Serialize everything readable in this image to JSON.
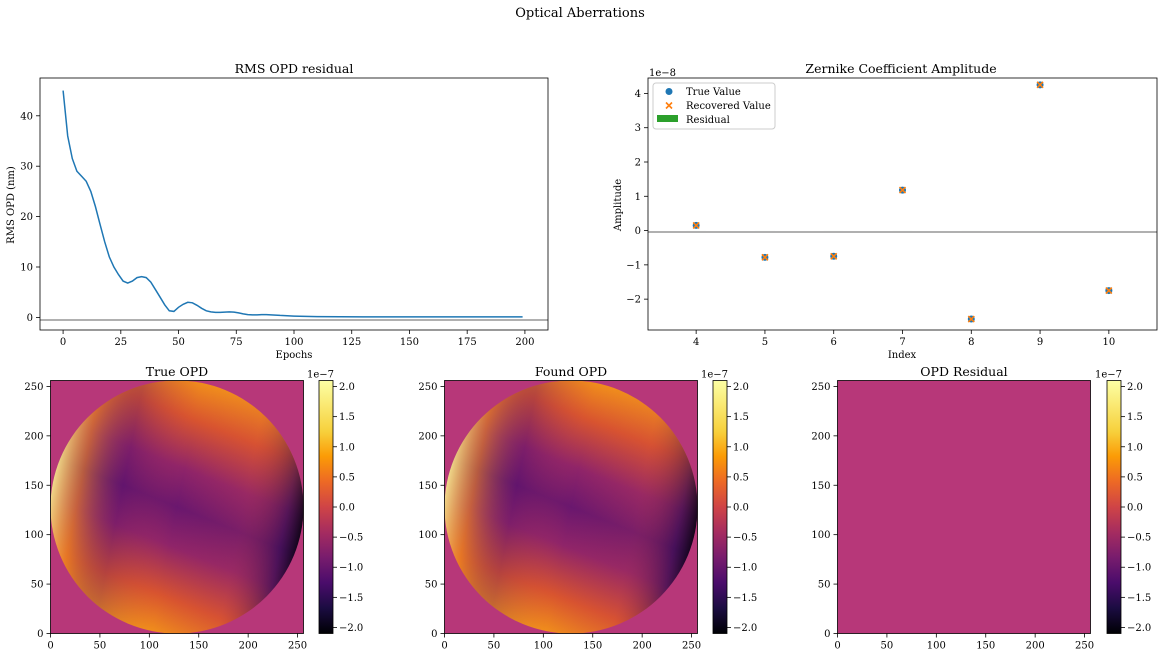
{
  "figure_title": "Optical Aberrations",
  "colors": {
    "line": "#1f77b4",
    "true_marker": "#1f77b4",
    "recovered_marker": "#ff7f0e",
    "residual_bar": "#2ca02c",
    "zero_line": "#808080",
    "opd_background": "#b73779"
  },
  "colormap": "inferno",
  "chart_data": [
    {
      "type": "line",
      "title": "RMS OPD residual",
      "xlabel": "Epochs",
      "ylabel": "RMS OPD (nm)",
      "xlim": [
        -10,
        210
      ],
      "ylim": [
        -2.5,
        47.5
      ],
      "xticks": [
        0,
        25,
        50,
        75,
        100,
        125,
        150,
        175,
        200
      ],
      "yticks": [
        0,
        10,
        20,
        30,
        40
      ],
      "hline": 0,
      "x": [
        0,
        2,
        4,
        6,
        8,
        10,
        12,
        14,
        16,
        18,
        20,
        22,
        24,
        26,
        28,
        30,
        32,
        34,
        36,
        38,
        40,
        42,
        44,
        46,
        48,
        50,
        52,
        54,
        56,
        58,
        60,
        62,
        64,
        66,
        68,
        70,
        72,
        74,
        76,
        78,
        80,
        82,
        84,
        86,
        88,
        90,
        92,
        94,
        96,
        98,
        100,
        110,
        120,
        130,
        140,
        150,
        160,
        170,
        180,
        190,
        199
      ],
      "y": [
        45.0,
        36.0,
        31.5,
        29.0,
        28.0,
        27.0,
        25.0,
        22.0,
        18.5,
        15.0,
        12.0,
        10.0,
        8.5,
        7.2,
        6.8,
        7.2,
        7.9,
        8.1,
        7.9,
        7.0,
        5.5,
        4.0,
        2.5,
        1.3,
        1.2,
        2.0,
        2.6,
        3.0,
        2.9,
        2.4,
        1.8,
        1.3,
        1.1,
        1.0,
        1.0,
        1.05,
        1.1,
        1.05,
        0.9,
        0.7,
        0.55,
        0.5,
        0.5,
        0.55,
        0.55,
        0.5,
        0.45,
        0.4,
        0.35,
        0.3,
        0.25,
        0.15,
        0.12,
        0.1,
        0.1,
        0.1,
        0.1,
        0.1,
        0.1,
        0.1,
        0.1
      ]
    },
    {
      "type": "scatter",
      "title": "Zernike Coefficient Amplitude",
      "xlabel": "Index",
      "ylabel": "Amplitude",
      "offset_label": "1e−8",
      "xlim": [
        3.3,
        10.7
      ],
      "ylim": [
        -2.9,
        4.45
      ],
      "xticks": [
        4,
        5,
        6,
        7,
        8,
        9,
        10
      ],
      "yticks": [
        -2,
        -1,
        0,
        1,
        2,
        3,
        4
      ],
      "hline": 0,
      "legend_loc": "upper-left",
      "series": [
        {
          "name": "True Value",
          "marker": "circle",
          "x": [
            4,
            5,
            6,
            7,
            8,
            9,
            10
          ],
          "values": [
            0.15,
            -0.78,
            -0.75,
            1.18,
            -2.58,
            4.25,
            -1.75
          ]
        },
        {
          "name": "Recovered Value",
          "marker": "x",
          "x": [
            4,
            5,
            6,
            7,
            8,
            9,
            10
          ],
          "values": [
            0.15,
            -0.78,
            -0.75,
            1.18,
            -2.58,
            4.25,
            -1.75
          ]
        },
        {
          "name": "Residual",
          "marker": "bar",
          "x": [
            4,
            5,
            6,
            7,
            8,
            9,
            10
          ],
          "values": [
            0,
            0,
            0,
            0,
            0,
            0,
            0
          ]
        }
      ]
    },
    {
      "type": "heatmap",
      "title": "True OPD",
      "xlim": [
        0,
        256
      ],
      "ylim": [
        0,
        256
      ],
      "xticks": [
        0,
        50,
        100,
        150,
        200,
        250
      ],
      "yticks": [
        0,
        50,
        100,
        150,
        200,
        250
      ],
      "colorbar_offset": "1e−7",
      "colorbar_range": [
        -2.1,
        2.1
      ],
      "colorbar_ticks": [
        -2.0,
        -1.5,
        -1.0,
        -0.5,
        0.0,
        0.5,
        1.0,
        1.5,
        2.0
      ],
      "colorbar_labels": [
        "−2.0",
        "−1.5",
        "−1.0",
        "−0.5",
        "0.0",
        "0.5",
        "1.0",
        "1.5",
        "2.0"
      ]
    },
    {
      "type": "heatmap",
      "title": "Found OPD",
      "xlim": [
        0,
        256
      ],
      "ylim": [
        0,
        256
      ],
      "xticks": [
        0,
        50,
        100,
        150,
        200,
        250
      ],
      "yticks": [
        0,
        50,
        100,
        150,
        200,
        250
      ],
      "colorbar_offset": "1e−7",
      "colorbar_range": [
        -2.1,
        2.1
      ],
      "colorbar_ticks": [
        -2.0,
        -1.5,
        -1.0,
        -0.5,
        0.0,
        0.5,
        1.0,
        1.5,
        2.0
      ],
      "colorbar_labels": [
        "−2.0",
        "−1.5",
        "−1.0",
        "−0.5",
        "0.0",
        "0.5",
        "1.0",
        "1.5",
        "2.0"
      ]
    },
    {
      "type": "heatmap",
      "title": "OPD Residual",
      "xlim": [
        0,
        256
      ],
      "ylim": [
        0,
        256
      ],
      "xticks": [
        0,
        50,
        100,
        150,
        200,
        250
      ],
      "yticks": [
        0,
        50,
        100,
        150,
        200,
        250
      ],
      "colorbar_offset": "1e−7",
      "colorbar_range": [
        -2.1,
        2.1
      ],
      "colorbar_ticks": [
        -2.0,
        -1.5,
        -1.0,
        -0.5,
        0.0,
        0.5,
        1.0,
        1.5,
        2.0
      ],
      "colorbar_labels": [
        "−2.0",
        "−1.5",
        "−1.0",
        "−0.5",
        "0.0",
        "0.5",
        "1.0",
        "1.5",
        "2.0"
      ]
    }
  ]
}
